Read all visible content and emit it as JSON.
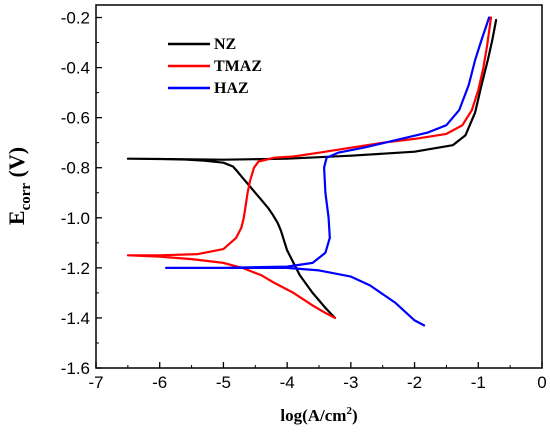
{
  "chart_data": {
    "type": "line",
    "xlabel": "log(A/cm",
    "xlabel_sup": "2",
    "xlabel_end": ")",
    "ylabel": "E",
    "ylabel_sub": "corr",
    "ylabel_end": " (V)",
    "xlim": [
      -7,
      0
    ],
    "ylim": [
      -1.6,
      -0.15
    ],
    "xticks": [
      -7,
      -6,
      -5,
      -4,
      -3,
      -2,
      -1,
      0
    ],
    "xtick_labels": [
      "-7",
      "-6",
      "-5",
      "-4",
      "-3",
      "-2",
      "-1",
      "0"
    ],
    "yticks": [
      -1.6,
      -1.4,
      -1.2,
      -1.0,
      -0.8,
      -0.6,
      -0.4,
      -0.2
    ],
    "ytick_labels": [
      "-1.6",
      "-1.4",
      "-1.2",
      "-1.0",
      "-0.8",
      "-0.6",
      "-0.4",
      "-0.2"
    ],
    "grid": false,
    "legend_position": "top-left",
    "series": [
      {
        "name": "NZ",
        "color": "#000000",
        "points": [
          [
            -3.25,
            -1.4
          ],
          [
            -3.4,
            -1.36
          ],
          [
            -3.6,
            -1.3
          ],
          [
            -3.8,
            -1.23
          ],
          [
            -4.0,
            -1.13
          ],
          [
            -4.1,
            -1.05
          ],
          [
            -4.15,
            -1.02
          ],
          [
            -4.22,
            -0.99
          ],
          [
            -4.3,
            -0.96
          ],
          [
            -4.4,
            -0.93
          ],
          [
            -4.5,
            -0.9
          ],
          [
            -4.6,
            -0.87
          ],
          [
            -4.7,
            -0.84
          ],
          [
            -4.78,
            -0.815
          ],
          [
            -4.85,
            -0.795
          ],
          [
            -5.0,
            -0.78
          ],
          [
            -5.3,
            -0.772
          ],
          [
            -5.6,
            -0.767
          ],
          [
            -6.0,
            -0.765
          ],
          [
            -6.5,
            -0.764
          ],
          [
            -6.0,
            -0.765
          ],
          [
            -5.0,
            -0.768
          ],
          [
            -4.0,
            -0.764
          ],
          [
            -3.0,
            -0.752
          ],
          [
            -2.0,
            -0.736
          ],
          [
            -1.4,
            -0.71
          ],
          [
            -1.2,
            -0.67
          ],
          [
            -1.05,
            -0.58
          ],
          [
            -0.95,
            -0.47
          ],
          [
            -0.85,
            -0.37
          ],
          [
            -0.78,
            -0.29
          ],
          [
            -0.72,
            -0.21
          ]
        ]
      },
      {
        "name": "TMAZ",
        "color": "#ff0000",
        "points": [
          [
            -3.25,
            -1.4
          ],
          [
            -3.4,
            -1.38
          ],
          [
            -3.6,
            -1.35
          ],
          [
            -3.9,
            -1.3
          ],
          [
            -4.2,
            -1.26
          ],
          [
            -4.4,
            -1.23
          ],
          [
            -4.7,
            -1.2
          ],
          [
            -5.0,
            -1.18
          ],
          [
            -5.5,
            -1.165
          ],
          [
            -6.0,
            -1.155
          ],
          [
            -6.5,
            -1.15
          ],
          [
            -6.0,
            -1.15
          ],
          [
            -5.4,
            -1.145
          ],
          [
            -5.0,
            -1.125
          ],
          [
            -4.8,
            -1.08
          ],
          [
            -4.72,
            -1.04
          ],
          [
            -4.68,
            -1.0
          ],
          [
            -4.65,
            -0.95
          ],
          [
            -4.62,
            -0.9
          ],
          [
            -4.58,
            -0.85
          ],
          [
            -4.52,
            -0.8
          ],
          [
            -4.45,
            -0.775
          ],
          [
            -4.2,
            -0.76
          ],
          [
            -3.9,
            -0.755
          ],
          [
            -3.5,
            -0.74
          ],
          [
            -3.0,
            -0.72
          ],
          [
            -2.5,
            -0.7
          ],
          [
            -2.0,
            -0.685
          ],
          [
            -1.5,
            -0.665
          ],
          [
            -1.25,
            -0.63
          ],
          [
            -1.1,
            -0.57
          ],
          [
            -1.0,
            -0.49
          ],
          [
            -0.92,
            -0.4
          ],
          [
            -0.86,
            -0.31
          ],
          [
            -0.8,
            -0.2
          ]
        ]
      },
      {
        "name": "HAZ",
        "color": "#0000ff",
        "points": [
          [
            -1.85,
            -1.43
          ],
          [
            -2.0,
            -1.41
          ],
          [
            -2.3,
            -1.34
          ],
          [
            -2.7,
            -1.27
          ],
          [
            -3.0,
            -1.235
          ],
          [
            -3.5,
            -1.21
          ],
          [
            -4.0,
            -1.2
          ],
          [
            -5.0,
            -1.2
          ],
          [
            -5.9,
            -1.2
          ],
          [
            -5.0,
            -1.2
          ],
          [
            -4.0,
            -1.195
          ],
          [
            -3.6,
            -1.18
          ],
          [
            -3.4,
            -1.14
          ],
          [
            -3.33,
            -1.08
          ],
          [
            -3.35,
            -1.0
          ],
          [
            -3.4,
            -0.9
          ],
          [
            -3.42,
            -0.8
          ],
          [
            -3.38,
            -0.76
          ],
          [
            -3.2,
            -0.74
          ],
          [
            -2.8,
            -0.72
          ],
          [
            -2.3,
            -0.69
          ],
          [
            -1.8,
            -0.66
          ],
          [
            -1.5,
            -0.63
          ],
          [
            -1.3,
            -0.57
          ],
          [
            -1.15,
            -0.47
          ],
          [
            -1.05,
            -0.37
          ],
          [
            -0.95,
            -0.29
          ],
          [
            -0.83,
            -0.2
          ]
        ]
      }
    ]
  }
}
